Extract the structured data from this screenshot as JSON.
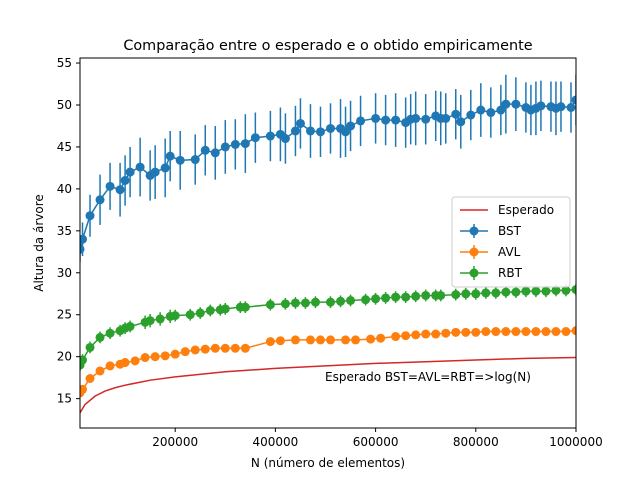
{
  "chart_data": {
    "type": "line",
    "title": "Comparação entre o esperado e o obtido empiricamente",
    "xlabel": "N (número de elementos)",
    "ylabel": "Altura da árvore",
    "xlim": [
      10000,
      1000000
    ],
    "ylim": [
      11.5,
      55.6
    ],
    "xticks": [
      200000,
      400000,
      600000,
      800000,
      1000000
    ],
    "yticks": [
      15,
      20,
      25,
      30,
      35,
      40,
      45,
      50,
      55
    ],
    "annotation": "Esperado BST=AVL=RBT=>log(N)",
    "legend": {
      "position": "center-right",
      "entries": [
        "Esperado",
        "BST",
        "AVL",
        "RBT"
      ]
    },
    "colors": {
      "Esperado": "#d62728",
      "BST": "#1f77b4",
      "AVL": "#ff7f0e",
      "RBT": "#2ca02c"
    },
    "series": [
      {
        "name": "Esperado",
        "style": "line",
        "x": [
          10000,
          20000,
          40000,
          60000,
          80000,
          100000,
          150000,
          200000,
          300000,
          400000,
          500000,
          600000,
          700000,
          800000,
          900000,
          1000000
        ],
        "y": [
          13.3,
          14.3,
          15.3,
          15.9,
          16.3,
          16.6,
          17.2,
          17.6,
          18.2,
          18.6,
          18.9,
          19.2,
          19.4,
          19.6,
          19.8,
          19.9
        ]
      },
      {
        "name": "BST",
        "style": "errorbar",
        "x": [
          10000,
          15000,
          30000,
          50000,
          70000,
          90000,
          100000,
          110000,
          130000,
          150000,
          160000,
          180000,
          190000,
          210000,
          240000,
          260000,
          280000,
          300000,
          320000,
          340000,
          360000,
          390000,
          410000,
          420000,
          440000,
          450000,
          470000,
          490000,
          510000,
          530000,
          540000,
          550000,
          570000,
          600000,
          620000,
          640000,
          660000,
          670000,
          680000,
          700000,
          720000,
          730000,
          740000,
          760000,
          770000,
          790000,
          810000,
          830000,
          850000,
          860000,
          880000,
          900000,
          910000,
          920000,
          930000,
          950000,
          960000,
          970000,
          990000,
          1000000
        ],
        "y": [
          32.8,
          34.0,
          36.8,
          38.7,
          40.3,
          39.9,
          41.0,
          42.0,
          42.6,
          41.6,
          42.0,
          42.5,
          43.9,
          43.4,
          43.5,
          44.6,
          44.3,
          45.0,
          45.3,
          45.4,
          46.1,
          46.3,
          46.5,
          46.0,
          46.9,
          47.8,
          46.9,
          46.8,
          47.2,
          47.2,
          46.8,
          47.5,
          48.1,
          48.4,
          48.2,
          48.2,
          47.9,
          48.3,
          48.4,
          48.3,
          48.7,
          48.4,
          48.4,
          48.9,
          48.0,
          48.8,
          49.4,
          49.1,
          49.4,
          50.1,
          50.1,
          49.7,
          49.4,
          49.6,
          49.9,
          49.8,
          49.6,
          49.8,
          49.7,
          50.6
        ],
        "yerr": [
          1.5,
          2.0,
          2.5,
          3.0,
          2.8,
          3.2,
          3.0,
          3.0,
          3.5,
          3.0,
          3.2,
          3.5,
          3.0,
          3.5,
          3.0,
          3.0,
          3.2,
          3.2,
          3.0,
          3.5,
          3.0,
          3.0,
          3.2,
          3.0,
          3.0,
          3.0,
          3.2,
          3.0,
          3.0,
          3.5,
          3.0,
          3.0,
          3.0,
          3.0,
          3.0,
          3.2,
          3.0,
          3.0,
          3.2,
          3.0,
          3.0,
          3.2,
          3.0,
          3.0,
          3.2,
          3.0,
          3.2,
          3.0,
          3.0,
          3.5,
          3.2,
          3.0,
          3.0,
          3.2,
          3.0,
          3.0,
          3.2,
          3.0,
          3.0,
          3.0
        ]
      },
      {
        "name": "AVL",
        "style": "errorbar",
        "x": [
          10000,
          15000,
          30000,
          50000,
          70000,
          90000,
          100000,
          120000,
          140000,
          160000,
          180000,
          200000,
          220000,
          240000,
          260000,
          280000,
          300000,
          320000,
          340000,
          390000,
          410000,
          440000,
          470000,
          490000,
          510000,
          540000,
          560000,
          590000,
          610000,
          640000,
          660000,
          680000,
          700000,
          720000,
          740000,
          760000,
          780000,
          800000,
          820000,
          840000,
          860000,
          880000,
          900000,
          920000,
          940000,
          960000,
          980000,
          1000000
        ],
        "y": [
          15.7,
          16.1,
          17.4,
          18.3,
          18.9,
          19.1,
          19.3,
          19.5,
          19.9,
          20.0,
          20.1,
          20.3,
          20.6,
          20.8,
          20.9,
          21.0,
          21.0,
          21.0,
          21.0,
          21.8,
          21.9,
          22.0,
          22.0,
          22.0,
          22.0,
          22.0,
          22.0,
          22.1,
          22.2,
          22.4,
          22.5,
          22.6,
          22.7,
          22.7,
          22.8,
          22.9,
          22.9,
          22.9,
          23.0,
          23.0,
          23.0,
          23.0,
          23.0,
          23.0,
          23.0,
          23.0,
          23.0,
          23.1
        ],
        "yerr": [
          0.5,
          0.5,
          0.5,
          0.5,
          0.5,
          0.5,
          0.5,
          0.5,
          0.5,
          0.4,
          0.4,
          0.4,
          0.4,
          0.4,
          0.4,
          0.3,
          0.3,
          0.3,
          0.3,
          0.4,
          0.3,
          0.3,
          0.3,
          0.3,
          0.3,
          0.3,
          0.3,
          0.3,
          0.4,
          0.4,
          0.4,
          0.4,
          0.4,
          0.4,
          0.4,
          0.3,
          0.3,
          0.3,
          0.3,
          0.3,
          0.3,
          0.3,
          0.3,
          0.3,
          0.3,
          0.3,
          0.3,
          0.3
        ]
      },
      {
        "name": "RBT",
        "style": "errorbar",
        "x": [
          10000,
          15000,
          30000,
          50000,
          70000,
          90000,
          100000,
          110000,
          140000,
          150000,
          170000,
          190000,
          200000,
          230000,
          250000,
          270000,
          290000,
          300000,
          330000,
          340000,
          390000,
          420000,
          440000,
          460000,
          480000,
          510000,
          530000,
          550000,
          580000,
          600000,
          620000,
          640000,
          660000,
          680000,
          700000,
          720000,
          730000,
          760000,
          780000,
          800000,
          820000,
          840000,
          860000,
          880000,
          900000,
          920000,
          940000,
          960000,
          980000,
          1000000
        ],
        "y": [
          19.0,
          19.6,
          21.1,
          22.3,
          22.8,
          23.1,
          23.4,
          23.6,
          24.1,
          24.3,
          24.5,
          24.8,
          24.9,
          25.0,
          25.2,
          25.5,
          25.6,
          25.7,
          25.9,
          25.9,
          26.2,
          26.3,
          26.4,
          26.4,
          26.5,
          26.5,
          26.6,
          26.7,
          26.8,
          26.9,
          27.0,
          27.1,
          27.1,
          27.2,
          27.3,
          27.3,
          27.3,
          27.4,
          27.5,
          27.5,
          27.6,
          27.6,
          27.7,
          27.7,
          27.8,
          27.8,
          27.8,
          27.9,
          27.9,
          28.0
        ],
        "yerr": [
          0.7,
          0.7,
          0.7,
          0.7,
          0.7,
          0.7,
          0.7,
          0.7,
          0.8,
          0.8,
          0.8,
          0.8,
          0.7,
          0.7,
          0.7,
          0.7,
          0.7,
          0.7,
          0.7,
          0.7,
          0.7,
          0.7,
          0.7,
          0.7,
          0.7,
          0.7,
          0.7,
          0.7,
          0.7,
          0.7,
          0.7,
          0.7,
          0.7,
          0.7,
          0.7,
          0.7,
          0.7,
          0.7,
          0.7,
          0.7,
          0.7,
          0.7,
          0.7,
          0.7,
          0.7,
          0.7,
          0.7,
          0.7,
          0.7,
          0.7
        ]
      }
    ]
  }
}
